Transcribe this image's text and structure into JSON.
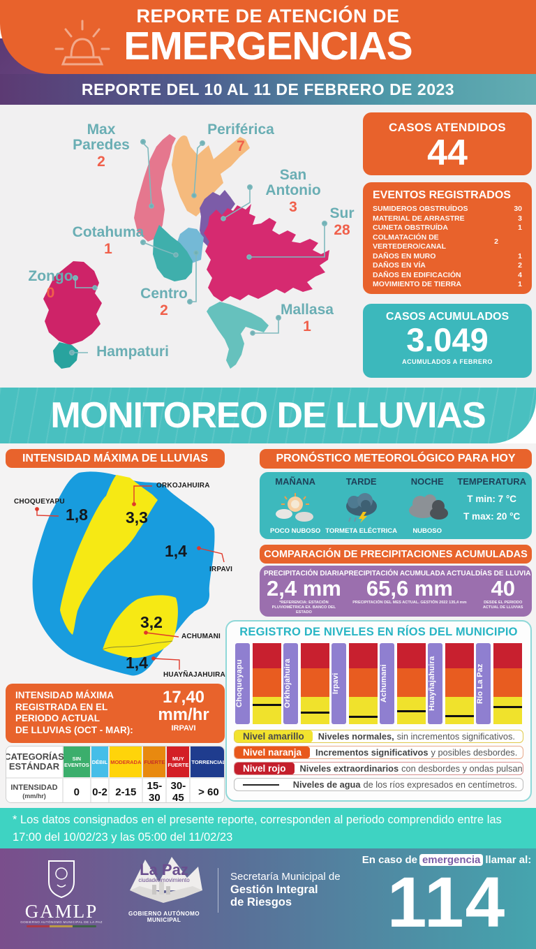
{
  "header": {
    "title_line1": "REPORTE DE ATENCIÓN DE",
    "title_line2": "EMERGENCIAS",
    "date_banner": "REPORTE DEL 10 AL 11 DE FEBRERO DE 2023"
  },
  "map": {
    "districts": [
      {
        "name": "Max Paredes",
        "value": "2",
        "color": "#E5778E"
      },
      {
        "name": "Periférica",
        "value": "7",
        "color": "#F5BA7D"
      },
      {
        "name": "San Antonio",
        "value": "3",
        "color": "#7C5CA8"
      },
      {
        "name": "Sur",
        "value": "28",
        "color": "#D62A70"
      },
      {
        "name": "Cotahuma",
        "value": "1",
        "color": "#3FAFAC"
      },
      {
        "name": "Zongo",
        "value": "0",
        "color": "#CE2368"
      },
      {
        "name": "Centro",
        "value": "2",
        "color": "#74B9D6"
      },
      {
        "name": "Mallasa",
        "value": "1",
        "color": "#66C1BD"
      },
      {
        "name": "Hampaturi",
        "value": "",
        "color": "#28A39E"
      }
    ]
  },
  "stats": {
    "casos_atendidos": {
      "label": "CASOS ATENDIDOS",
      "value": "44"
    },
    "eventos": {
      "title": "EVENTOS REGISTRADOS",
      "items": [
        {
          "label": "SUMIDEROS OBSTRUÍDOS",
          "value": "30"
        },
        {
          "label": "MATERIAL DE ARRASTRE",
          "value": "3"
        },
        {
          "label": "CUNETA OBSTRUÍDA",
          "value": "1"
        },
        {
          "label": "COLMATACIÓN DE VERTEDERO/CANAL",
          "value": "2"
        },
        {
          "label": "DAÑOS EN MURO",
          "value": "1"
        },
        {
          "label": "DAÑOS EN VÍA",
          "value": "2"
        },
        {
          "label": "DAÑOS EN EDIFICACIÓN",
          "value": "4"
        },
        {
          "label": "MOVIMIENTO DE TIERRA",
          "value": "1"
        }
      ]
    },
    "casos_acumulados": {
      "label": "CASOS ACUMULADOS",
      "value": "3.049",
      "note": "ACUMULADOS  A FEBRERO"
    }
  },
  "monitoreo_title": "MONITOREO DE LLUVIAS",
  "intensidad": {
    "header": "INTENSIDAD MÁXIMA  DE LLUVIAS",
    "map_colors": {
      "blue": "#189CDE",
      "yellow": "#F6E914"
    },
    "basins": [
      {
        "name": "CHOQUEYAPU",
        "value": "1,8"
      },
      {
        "name": "ORKOJAHUIRA",
        "value": "3,3"
      },
      {
        "name": "IRPAVI",
        "value": "1,4"
      },
      {
        "name": "ACHUMANI",
        "value": "3,2"
      },
      {
        "name": "HUAYÑAJAHUIRA",
        "value": "1,4"
      }
    ],
    "summary": {
      "line1": "INTENSIDAD MÁXIMA",
      "line2": "REGISTRADA EN EL",
      "line3": "PERIODO ACTUAL",
      "line4": "DE LLUVIAS (OCT - MAR):",
      "value": "17,40",
      "unit": "mm/hr",
      "station": "IRPAVI"
    }
  },
  "categorias": {
    "row1a": "CATEGORÍAS",
    "row1b": "ESTÁNDAR",
    "row2a": "INTENSIDAD",
    "row2b": "(mm/hr)",
    "columns": [
      {
        "label": "SIN EVENTOS",
        "value": "0",
        "bg": "#3BAE6C",
        "text": "#ffffff"
      },
      {
        "label": "DÉBIL",
        "value": "0-2",
        "bg": "#45BEE8",
        "text": "#ffffff"
      },
      {
        "label": "MODERADA",
        "value": "2-15",
        "bg": "#FFD40A",
        "text": "#D93A26"
      },
      {
        "label": "FUERTE",
        "value": "15-30",
        "bg": "#E8890F",
        "text": "#C62F26"
      },
      {
        "label": "MUY FUERTE",
        "value": "30-45",
        "bg": "#D31F26",
        "text": "#ffffff"
      },
      {
        "label": "TORRENCIAL",
        "value": "> 60",
        "bg": "#1F3C8E",
        "text": "#ffffff"
      }
    ]
  },
  "pronostico": {
    "header": "PRONÓSTICO METEOROLÓGICO PARA HOY",
    "periods": [
      {
        "label": "MAÑANA",
        "desc": "POCO NUBOSO"
      },
      {
        "label": "TARDE",
        "desc": "TORMETA ELÉCTRICA"
      },
      {
        "label": "NOCHE",
        "desc": "NUBOSO"
      }
    ],
    "temperatura": {
      "label": "TEMPERATURA",
      "tmin": "T min:  7 °C",
      "tmax": "T max: 20 °C"
    }
  },
  "comparacion": {
    "header": "COMPARACIÓN DE PRECIPITACIONES ACUMULADAS",
    "stats": [
      {
        "label": "PRECIPITACIÓN DIARIA",
        "value": "2,4 mm",
        "note": "*REFERENCIA: ESTACIÓN PLUVIOMÉTRICA EX. BANCO DEL ESTADO"
      },
      {
        "label": "PRECIPITACIÓN ACUMULADA ACTUAL",
        "value": "65,6 mm",
        "note": "PRECIPITACIÓN DEL MES ACTUAL. GESTIÓN 2022 135,4 mm"
      },
      {
        "label": "DÍAS DE LLUVIA",
        "value": "40",
        "note": "DESDE EL PERIODO ACTUAL DE LLUVIAS"
      }
    ]
  },
  "rios": {
    "title": "REGISTRO DE NIVELES EN RÍOS DEL MUNICIPIO",
    "bar_colors": {
      "red": "#C8202F",
      "orange": "#E85C20",
      "yellow": "#F0E22C",
      "label": "#8F7FD0"
    },
    "rivers": [
      {
        "name": "Choqueyapu",
        "line_pct": "22%"
      },
      {
        "name": "Orkhojahuira",
        "line_pct": "13%"
      },
      {
        "name": "Irpavi",
        "line_pct": "8%"
      },
      {
        "name": "Achumani",
        "line_pct": "15%"
      },
      {
        "name": "Huayñajahuira",
        "line_pct": "9%"
      },
      {
        "name": "Río La Paz",
        "line_pct": "20%"
      }
    ],
    "legend": [
      {
        "chip": "Nivel amarillo",
        "chip_bg": "#F2E32E",
        "chip_color": "#4a4a4a",
        "border": "#E0C94A",
        "bold": "Niveles normales,",
        "rest": "sin incrementos significativos."
      },
      {
        "chip": "Nivel naranja",
        "chip_bg": "#E8581C",
        "chip_color": "#ffffff",
        "border": "#E8A98A",
        "bold": "Incrementos significativos",
        "rest": "y posibles desbordes."
      },
      {
        "chip": "Nivel rojo",
        "chip_bg": "#C41E2B",
        "chip_color": "#ffffff",
        "border": "#D89090",
        "bold": "Niveles extraordinarios",
        "rest": "con desbordes y ondas pulsantes."
      },
      {
        "chip": "",
        "chip_bg": "#ffffff",
        "chip_color": "#222222",
        "border": "#BBBBBB",
        "bold": "Niveles de agua",
        "rest": "de los ríos expresados en centímetros."
      }
    ]
  },
  "footnote": "* Los datos consignados en el presente reporte, corresponden al periodo comprendido entre las 17:00 del 10/02/23 y las 05:00 del 11/02/23",
  "footer": {
    "gamlp": "GAMLP",
    "gamlp_sub": "GOBIERNO AUTÓNOMO MUNICIPAL DE LA PAZ",
    "lapaz": "La Paz",
    "lapaz_sub": "ciudadenmovimiento",
    "lapaz_gov": "GOBIERNO AUTÓNOMO MUNICIPAL",
    "secretaria_1": "Secretaría Municipal de",
    "secretaria_2": "Gestión Integral",
    "secretaria_3": "de Riesgos",
    "emergency_pre": "En caso de",
    "emergency_hl": "emergencia",
    "emergency_post": "llamar al:",
    "phone": "114"
  }
}
